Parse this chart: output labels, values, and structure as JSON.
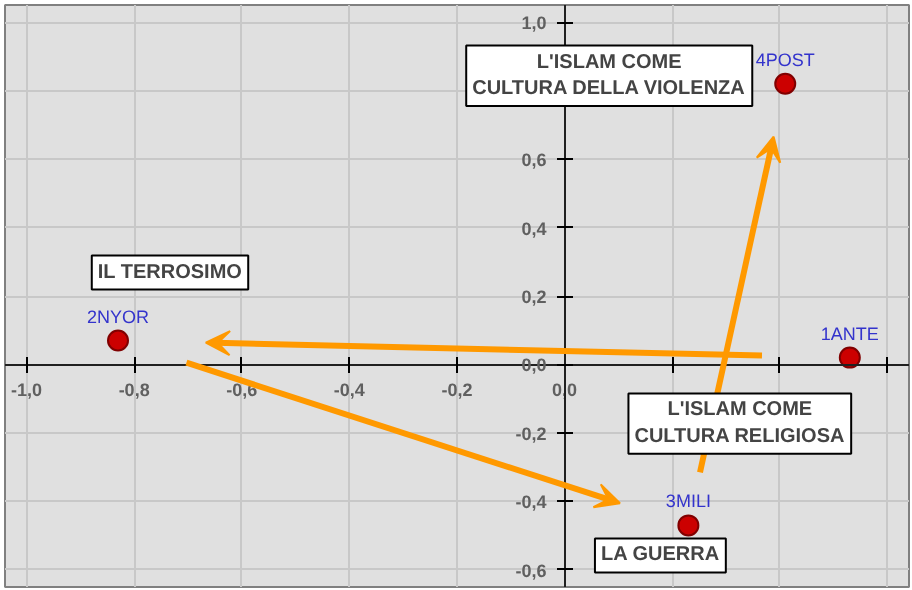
{
  "chart_data": {
    "type": "scatter",
    "x": [
      0.53,
      -0.83,
      0.23,
      0.41
    ],
    "series": [
      {
        "color": "#cc0000",
        "values": [
          0.02,
          0.07,
          -0.47,
          0.82
        ]
      }
    ],
    "marker": "circle",
    "xlim": [
      -1.04,
      0.64
    ],
    "ylim": [
      -0.65,
      1.05
    ],
    "xticks": [
      {
        "value": -1.0,
        "label": "-1,0"
      },
      {
        "value": -0.8,
        "label": "-0,8"
      },
      {
        "value": -0.6,
        "label": "-0,6"
      },
      {
        "value": -0.4,
        "label": "-0,4"
      },
      {
        "value": -0.2,
        "label": "-0,2"
      },
      {
        "value": 0.0,
        "label": "0,0"
      },
      {
        "value": 0.2,
        "label": null
      },
      {
        "value": 0.4,
        "label": null
      },
      {
        "value": 0.6,
        "label": null
      }
    ],
    "yticks": [
      {
        "value": -0.6,
        "label": "-0,6"
      },
      {
        "value": -0.4,
        "label": "-0,4"
      },
      {
        "value": -0.2,
        "label": "-0,2"
      },
      {
        "value": 0.0,
        "label": "0,0"
      },
      {
        "value": 0.2,
        "label": "0,2"
      },
      {
        "value": 0.4,
        "label": "0,4"
      },
      {
        "value": 0.6,
        "label": "0,6"
      },
      {
        "value": 0.8,
        "label": null
      },
      {
        "value": 1.0,
        "label": "1,0"
      }
    ],
    "grid": true,
    "annotations": [
      {
        "text": "1ANTE",
        "x": 0.53,
        "y": 0.02
      },
      {
        "text": "2NYOR",
        "x": -0.83,
        "y": 0.07
      },
      {
        "text": "3MILI",
        "x": 0.23,
        "y": -0.47
      },
      {
        "text": "4POST",
        "x": 0.41,
        "y": 0.82
      },
      "L'ISLAM COME\nCULTURA RELIGIOSA",
      "IL TERROSIMO",
      "LA GUERRA",
      "L'ISLAM COME\nCULTURA DELLA VIOLENZA"
    ]
  }
}
